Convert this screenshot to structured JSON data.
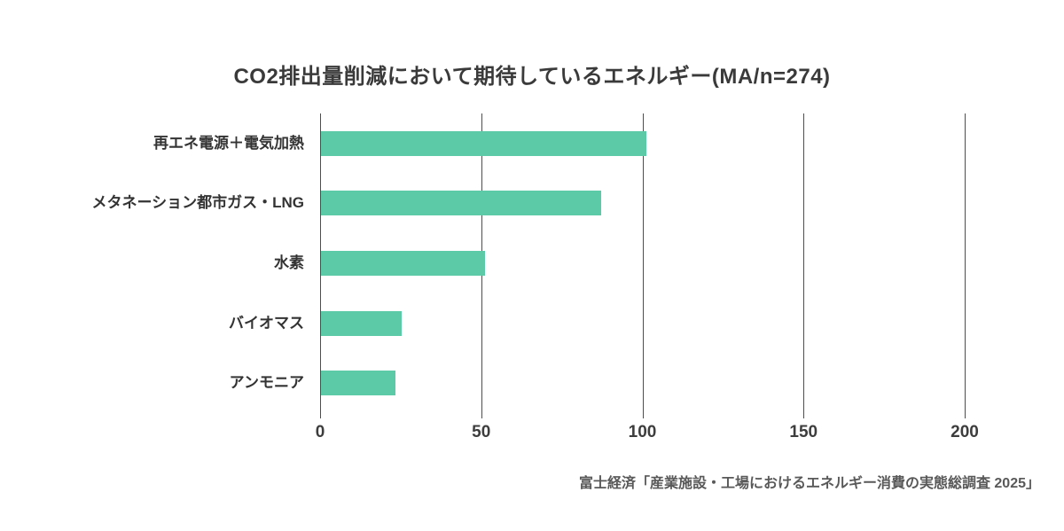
{
  "page": {
    "background": "#ffffff"
  },
  "chart_data": {
    "type": "bar",
    "orientation": "horizontal",
    "title": "CO2排出量削減において期待しているエネルギー(MA/n=274)",
    "categories": [
      "再エネ電源＋電気加熱",
      "メタネーション都市ガス・LNG",
      "水素",
      "バイオマス",
      "アンモニア"
    ],
    "values": [
      101,
      87,
      51,
      25,
      23
    ],
    "xlabel": "",
    "ylabel": "",
    "xlim": [
      0,
      200
    ],
    "xticks": [
      0,
      50,
      100,
      150,
      200
    ],
    "grid": "vertical-gridlines",
    "legend": "none",
    "bar_color": "#5cc9a7",
    "gridline_color": "#4d4d4d",
    "label_color": "#333333",
    "tick_label_color": "#3d3d3d",
    "title_color": "#3a3a3a"
  },
  "source": "富士経済「産業施設・工場におけるエネルギー消費の実態総調査 2025」"
}
